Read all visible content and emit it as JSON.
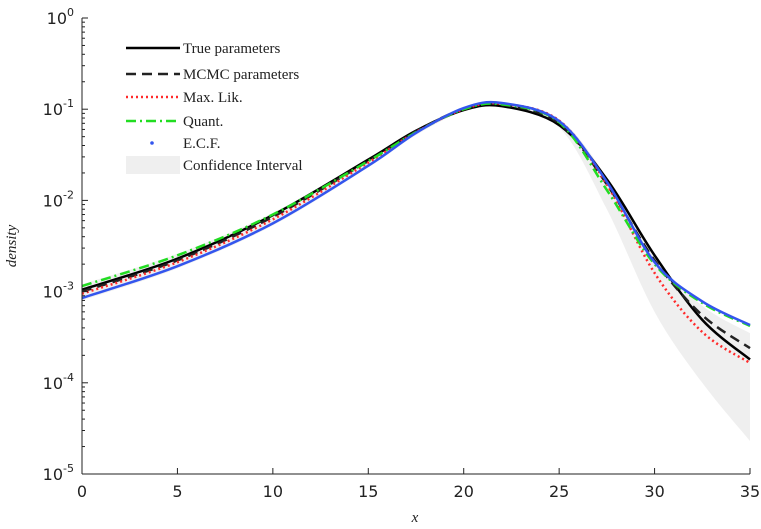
{
  "chart_data": {
    "type": "line",
    "log_y": true,
    "x_label": "x",
    "y_label": "density",
    "x": [
      0,
      5,
      10,
      15,
      17.5,
      20,
      22,
      25,
      27.5,
      30,
      32.5,
      35
    ],
    "band": {
      "name": "Confidence Interval",
      "color": "#efefef",
      "lower": [
        0.0008,
        0.0018,
        0.0053,
        0.023,
        0.052,
        0.095,
        0.105,
        0.063,
        0.008,
        0.0006,
        0.0001,
        2.3e-05
      ],
      "upper": [
        0.0012,
        0.0026,
        0.0073,
        0.029,
        0.06,
        0.105,
        0.118,
        0.078,
        0.018,
        0.0024,
        0.0007,
        0.00035
      ]
    },
    "series": [
      {
        "name": "True parameters",
        "color": "#000000",
        "dash": "solid",
        "values": [
          0.00105,
          0.0023,
          0.0069,
          0.028,
          0.058,
          0.098,
          0.108,
          0.067,
          0.017,
          0.0025,
          0.00049,
          0.00018
        ]
      },
      {
        "name": "MCMC parameters",
        "color": "#222222",
        "dash": "dashed",
        "values": [
          0.001,
          0.0022,
          0.0066,
          0.027,
          0.057,
          0.101,
          0.112,
          0.07,
          0.015,
          0.0022,
          0.00055,
          0.00024
        ]
      },
      {
        "name": "Max. Lik.",
        "color": "#ff2a2a",
        "dash": "dotted",
        "values": [
          0.00095,
          0.0021,
          0.0062,
          0.026,
          0.056,
          0.1,
          0.115,
          0.075,
          0.015,
          0.0016,
          0.00036,
          0.000165
        ]
      },
      {
        "name": "Quant.",
        "color": "#22dd22",
        "dash": "dashdot",
        "values": [
          0.00115,
          0.0025,
          0.007,
          0.027,
          0.056,
          0.1,
          0.113,
          0.072,
          0.013,
          0.002,
          0.00075,
          0.00042
        ]
      },
      {
        "name": "E.C.F.",
        "color": "#3355ee",
        "dash": "solid",
        "legend_marker": "dot",
        "values": [
          0.00085,
          0.0019,
          0.0056,
          0.024,
          0.055,
          0.103,
          0.117,
          0.074,
          0.016,
          0.0021,
          0.00078,
          0.00043
        ]
      }
    ],
    "xlim": [
      0,
      35
    ],
    "xticks": [
      0,
      5,
      10,
      15,
      20,
      25,
      30,
      35
    ],
    "ylim": [
      1e-05,
      1
    ],
    "yticks": [
      {
        "value": 1e-05,
        "label": "10",
        "exponent": "-5"
      },
      {
        "value": 0.0001,
        "label": "10",
        "exponent": "-4"
      },
      {
        "value": 0.001,
        "label": "10",
        "exponent": "-3"
      },
      {
        "value": 0.01,
        "label": "10",
        "exponent": "-2"
      },
      {
        "value": 0.1,
        "label": "10",
        "exponent": "-1"
      },
      {
        "value": 1,
        "label": "10",
        "exponent": "0"
      }
    ]
  }
}
